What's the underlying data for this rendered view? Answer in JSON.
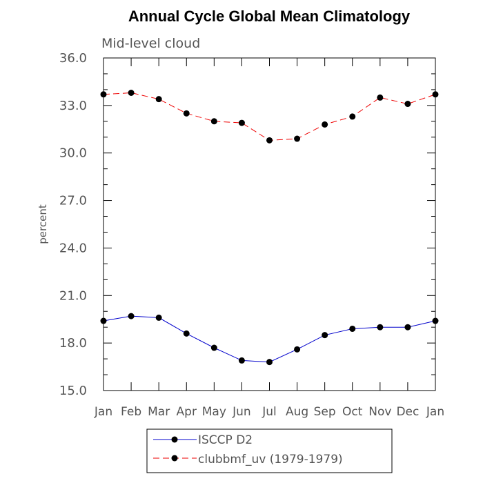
{
  "chart_data": {
    "type": "line",
    "title": "Annual Cycle Global Mean Climatology",
    "subtitle": "Mid-level cloud",
    "ylabel": "percent",
    "xlabel": "",
    "ylim": [
      15.0,
      36.0
    ],
    "yticks": [
      "15.0",
      "18.0",
      "21.0",
      "24.0",
      "27.0",
      "30.0",
      "33.0",
      "36.0"
    ],
    "categories": [
      "Jan",
      "Feb",
      "Mar",
      "Apr",
      "May",
      "Jun",
      "Jul",
      "Aug",
      "Sep",
      "Oct",
      "Nov",
      "Dec",
      "Jan"
    ],
    "series": [
      {
        "name": "ISCCP D2",
        "color": "#0000cc",
        "dash": "solid",
        "values": [
          19.4,
          19.7,
          19.6,
          18.6,
          17.7,
          16.9,
          16.8,
          17.6,
          18.5,
          18.9,
          19.0,
          19.0,
          19.4
        ]
      },
      {
        "name": "clubbmf_uv (1979-1979)",
        "color": "#ee0000",
        "dash": "dashed",
        "values": [
          33.7,
          33.8,
          33.4,
          32.5,
          32.0,
          31.9,
          30.8,
          30.9,
          31.8,
          32.3,
          33.5,
          33.1,
          33.7
        ]
      }
    ]
  }
}
